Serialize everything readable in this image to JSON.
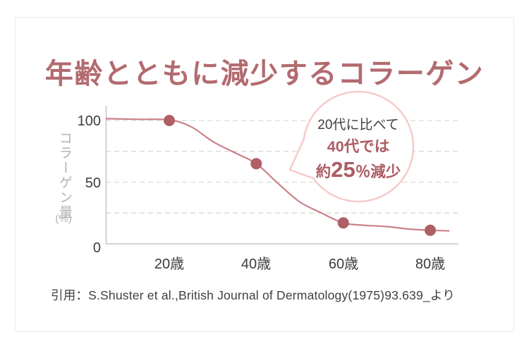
{
  "title": "年齢とともに減少するコラーゲン",
  "axis": {
    "ylabel": "コラーゲン量",
    "ylabel_unit": "(%)",
    "y_tick_labels": [
      "100",
      "50",
      "0"
    ],
    "x_tick_labels": [
      "20歳",
      "40歳",
      "60歳",
      "80歳"
    ]
  },
  "annotation_bubble": {
    "line1": "20代に比べて",
    "line2": "40代では",
    "line3_prefix": "約",
    "line3_number": "25",
    "line3_suffix": "％減少"
  },
  "citation": "引用：S.Shuster et al.,British Journal of Dermatology(1975)93.639_より",
  "chart_data": {
    "type": "line",
    "title": "年齢とともに減少するコラーゲン",
    "ylabel": "コラーゲン量 (%)",
    "x": [
      20,
      40,
      60,
      80
    ],
    "values": [
      100,
      65,
      17,
      11
    ],
    "x_tick_labels": [
      "20歳",
      "40歳",
      "60歳",
      "80歳"
    ],
    "y_ticks": [
      100,
      50,
      0
    ],
    "ylim": [
      0,
      112
    ],
    "x_axis_age_range": [
      5.4,
      84.4
    ],
    "gridlines_at": [
      100,
      75,
      50,
      25
    ],
    "grid": "dashed-horizontal",
    "legend": false,
    "annotation": "20代に比べて 40代では 約25％減少",
    "curve_samples": [
      [
        5.4,
        101.5
      ],
      [
        13,
        101
      ],
      [
        20,
        100.5
      ],
      [
        25,
        95
      ],
      [
        30,
        83
      ],
      [
        35,
        74
      ],
      [
        40,
        65
      ],
      [
        45,
        49
      ],
      [
        50,
        34
      ],
      [
        55,
        25
      ],
      [
        60,
        17
      ],
      [
        65,
        15
      ],
      [
        70,
        14
      ],
      [
        75,
        12
      ],
      [
        80,
        11
      ],
      [
        84.4,
        10.5
      ]
    ]
  },
  "colors": {
    "title": "#b26b6f",
    "rose_text": "#ad5b63",
    "dark_text": "#3e3e3e",
    "line": "#c98288",
    "point": "#b15f66",
    "grid": "#d9d9d9",
    "axis": "#c6c6c6",
    "ylabel_gray": "#b1b1b1",
    "bubble_border": "#f6caca",
    "card_border": "#ebebeb"
  }
}
